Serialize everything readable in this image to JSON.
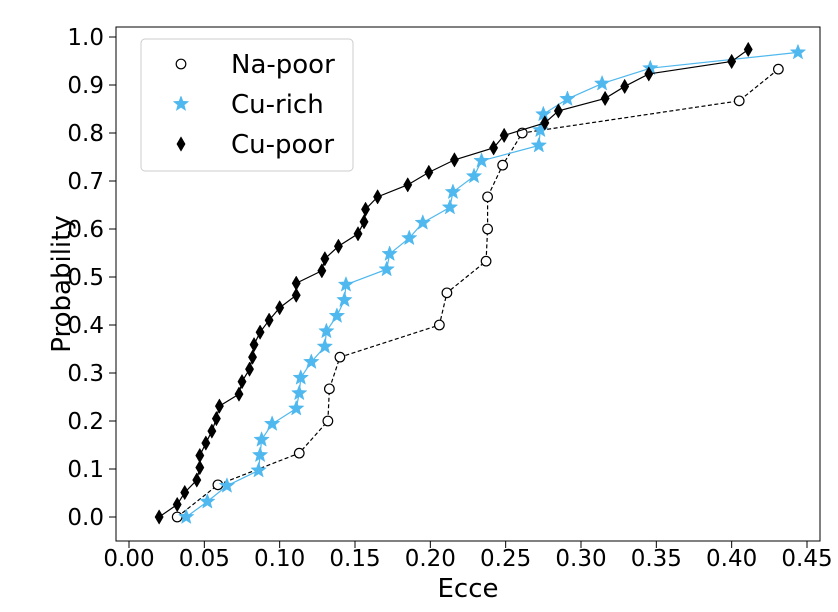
{
  "chart_data": {
    "type": "line",
    "xlabel": "Ecce",
    "ylabel": "Probability",
    "xlim": [
      0.0,
      0.45
    ],
    "ylim": [
      0.0,
      1.0
    ],
    "xticks": [
      "0.00",
      "0.05",
      "0.10",
      "0.15",
      "0.20",
      "0.25",
      "0.30",
      "0.35",
      "0.40",
      "0.45"
    ],
    "yticks": [
      "0.0",
      "0.1",
      "0.2",
      "0.3",
      "0.4",
      "0.5",
      "0.6",
      "0.7",
      "0.8",
      "0.9",
      "1.0"
    ],
    "grid": false,
    "legend_position": "top-left",
    "series": [
      {
        "name": "Na-poor",
        "marker": "circle-open",
        "line_style": "dashed",
        "color": "#000000",
        "x": [
          0.032,
          0.059,
          0.113,
          0.132,
          0.133,
          0.14,
          0.206,
          0.211,
          0.237,
          0.238,
          0.238,
          0.248,
          0.261,
          0.405,
          0.431
        ],
        "y": [
          0.0,
          0.067,
          0.133,
          0.2,
          0.267,
          0.333,
          0.4,
          0.467,
          0.533,
          0.6,
          0.667,
          0.733,
          0.8,
          0.867,
          0.933
        ]
      },
      {
        "name": "Cu-rich",
        "marker": "star",
        "line_style": "solid",
        "color": "#4fb8ee",
        "x": [
          0.038,
          0.052,
          0.065,
          0.086,
          0.087,
          0.088,
          0.095,
          0.111,
          0.113,
          0.114,
          0.121,
          0.13,
          0.131,
          0.138,
          0.143,
          0.144,
          0.171,
          0.173,
          0.186,
          0.195,
          0.213,
          0.215,
          0.229,
          0.234,
          0.272,
          0.273,
          0.275,
          0.291,
          0.314,
          0.346,
          0.444
        ],
        "y": [
          0.0,
          0.032,
          0.065,
          0.097,
          0.129,
          0.161,
          0.194,
          0.226,
          0.258,
          0.29,
          0.323,
          0.355,
          0.387,
          0.419,
          0.452,
          0.484,
          0.516,
          0.548,
          0.581,
          0.613,
          0.645,
          0.677,
          0.71,
          0.742,
          0.774,
          0.806,
          0.839,
          0.871,
          0.903,
          0.935,
          0.968
        ]
      },
      {
        "name": "Cu-poor",
        "marker": "diamond",
        "line_style": "solid",
        "color": "#000000",
        "x": [
          0.02,
          0.032,
          0.037,
          0.045,
          0.047,
          0.047,
          0.051,
          0.055,
          0.058,
          0.06,
          0.073,
          0.075,
          0.08,
          0.082,
          0.083,
          0.087,
          0.093,
          0.1,
          0.111,
          0.111,
          0.128,
          0.13,
          0.139,
          0.152,
          0.156,
          0.157,
          0.165,
          0.185,
          0.199,
          0.216,
          0.242,
          0.249,
          0.276,
          0.285,
          0.316,
          0.329,
          0.345,
          0.4,
          0.411
        ],
        "y": [
          0.0,
          0.026,
          0.051,
          0.077,
          0.103,
          0.128,
          0.154,
          0.179,
          0.205,
          0.231,
          0.256,
          0.282,
          0.308,
          0.333,
          0.359,
          0.385,
          0.41,
          0.436,
          0.462,
          0.487,
          0.513,
          0.538,
          0.564,
          0.59,
          0.615,
          0.641,
          0.667,
          0.692,
          0.718,
          0.744,
          0.769,
          0.795,
          0.821,
          0.846,
          0.872,
          0.897,
          0.923,
          0.949,
          0.974
        ]
      }
    ]
  }
}
